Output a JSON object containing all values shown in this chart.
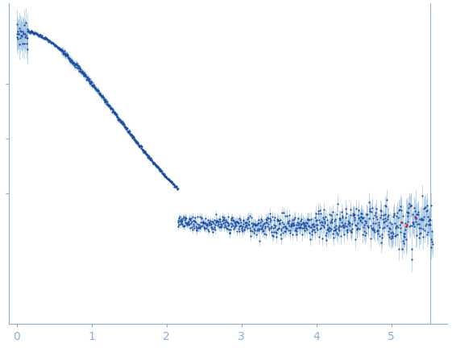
{
  "title": "",
  "xlabel": "",
  "ylabel": "",
  "xlim": [
    -0.1,
    5.75
  ],
  "ylim": [
    -0.35,
    1.12
  ],
  "bg_color": "#ffffff",
  "axis_color": "#8aafd0",
  "tick_color": "#8aafd0",
  "dot_color": "#1a4a9a",
  "error_color": "#7aabda",
  "outlier_color": "#cc2222",
  "xticks": [
    0,
    1,
    2,
    3,
    4,
    5
  ],
  "seed": 7
}
